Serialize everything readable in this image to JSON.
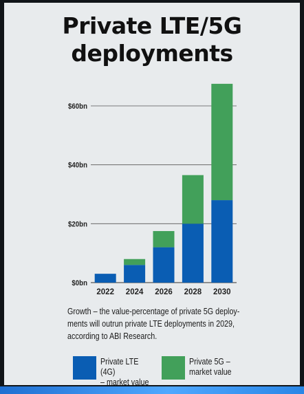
{
  "title_line1": "Private LTE/5G",
  "title_line2": "deployments",
  "caption": "Growth – the value-percentage of private 5G deploy-ments will outrun private LTE deployments in 2029, according to ABI Research.",
  "colors": {
    "lte": "#0a5db3",
    "g5": "#42a05a",
    "axis": "#555555",
    "background": "#e8ebed"
  },
  "chart_data": {
    "type": "bar",
    "stacked": true,
    "title": "Private LTE/5G deployments",
    "categories": [
      "2022",
      "2024",
      "2026",
      "2028",
      "2030"
    ],
    "series": [
      {
        "name": "Private LTE (4G) – market value",
        "values": [
          3,
          6,
          12,
          20,
          28
        ]
      },
      {
        "name": "Private 5G – market value",
        "values": [
          0,
          2,
          5.5,
          16.5,
          39.5
        ]
      }
    ],
    "y_ticks": [
      0,
      20,
      40,
      60
    ],
    "y_tick_labels": [
      "$0bn",
      "$20bn",
      "$40bn",
      "$60bn"
    ],
    "ylim": [
      0,
      70
    ],
    "xlabel": "",
    "ylabel": "",
    "legend": [
      {
        "label_line1": "Private LTE (4G)",
        "label_line2": "– market value"
      },
      {
        "label_line1": "Private 5G –",
        "label_line2": "market value"
      }
    ]
  }
}
